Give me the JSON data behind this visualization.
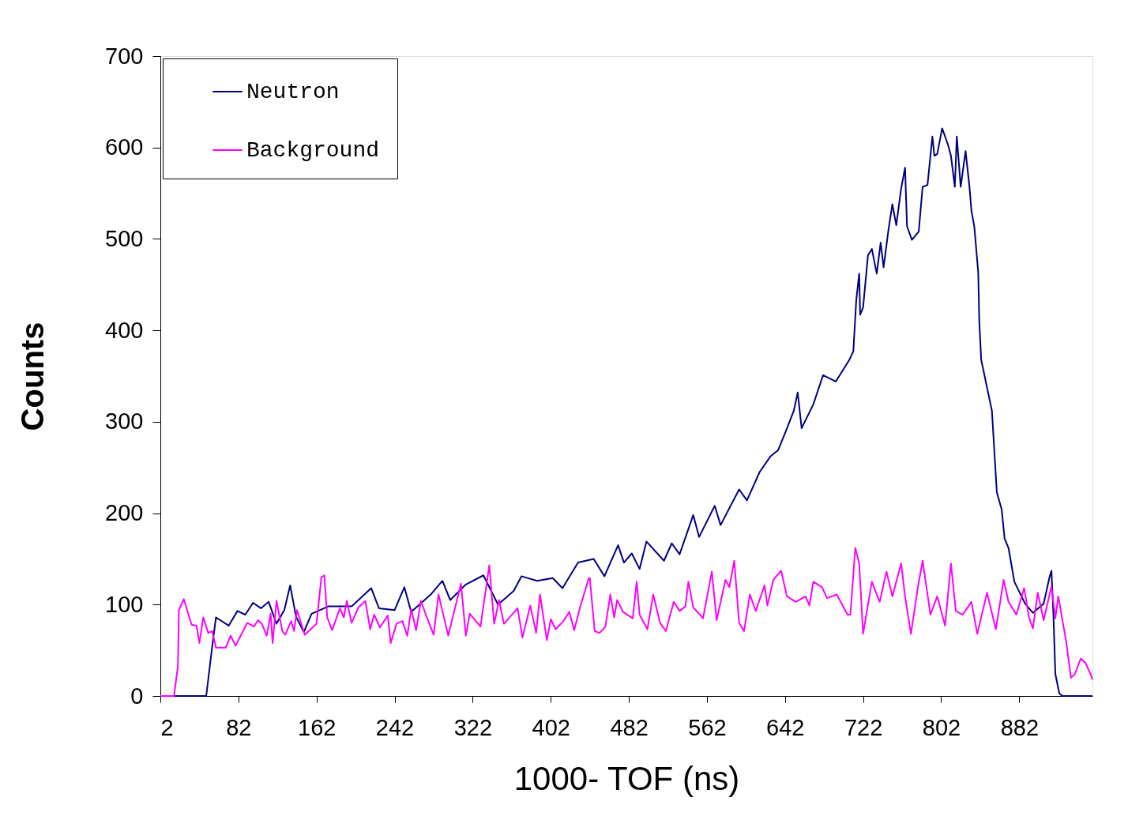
{
  "chart_data": {
    "type": "line",
    "xlabel": "1000- TOF (ns)",
    "ylabel": "Counts",
    "xlim": [
      2,
      957
    ],
    "xticks": [
      2,
      82,
      162,
      242,
      322,
      402,
      482,
      562,
      642,
      722,
      802,
      882
    ],
    "ylim": [
      0,
      700
    ],
    "yticks": [
      0,
      100,
      200,
      300,
      400,
      500,
      600,
      700
    ],
    "grid": false,
    "legend": "top left",
    "series": [
      {
        "name": "Neutron",
        "color": "#000080",
        "x": [
          2,
          49,
          55,
          59,
          72,
          81,
          89,
          97,
          105,
          113,
          121,
          129,
          135,
          141,
          149,
          157,
          174,
          198,
          218,
          226,
          242,
          252,
          259,
          279,
          291,
          299,
          315,
          333,
          348,
          364,
          372,
          388,
          404,
          414,
          430,
          446,
          457,
          471,
          477,
          485,
          493,
          500,
          518,
          526,
          534,
          548,
          554,
          570,
          576,
          595,
          603,
          616,
          627,
          635,
          643,
          651,
          655,
          659,
          671,
          681,
          694,
          708,
          712,
          715,
          718,
          719,
          722,
          727,
          731,
          736,
          740,
          743,
          748,
          752,
          756,
          761,
          765,
          767,
          772,
          779,
          783,
          788,
          791,
          793,
          795,
          798,
          803,
          809,
          812,
          816,
          818,
          822,
          827,
          831,
          833,
          836,
          840,
          841,
          843,
          854,
          859,
          864,
          867,
          871,
          877,
          888,
          896,
          907,
          913,
          915,
          917,
          919,
          923,
          926,
          957
        ],
        "values": [
          0,
          0,
          53,
          86,
          77,
          93,
          89,
          102,
          96,
          103,
          79,
          94,
          121,
          87,
          70,
          90,
          98,
          98,
          118,
          96,
          94,
          119,
          92,
          111,
          126,
          105,
          122,
          132,
          100,
          115,
          131,
          126,
          129,
          118,
          146,
          150,
          131,
          165,
          146,
          156,
          139,
          169,
          148,
          167,
          155,
          198,
          174,
          208,
          187,
          226,
          214,
          245,
          262,
          269,
          290,
          312,
          332,
          293,
          319,
          351,
          344,
          368,
          377,
          433,
          462,
          417,
          425,
          482,
          489,
          462,
          496,
          469,
          510,
          538,
          515,
          555,
          578,
          514,
          499,
          508,
          557,
          559,
          591,
          612,
          591,
          593,
          621,
          603,
          591,
          557,
          612,
          557,
          596,
          557,
          531,
          513,
          463,
          411,
          368,
          312,
          223,
          204,
          172,
          162,
          125,
          101,
          91,
          101,
          130,
          137,
          89,
          24,
          3,
          0,
          0
        ]
      },
      {
        "name": "Background",
        "color": "#ff00ff",
        "x": [
          2,
          16,
          20,
          21,
          26,
          34,
          39,
          42,
          46,
          51,
          55,
          59,
          69,
          74,
          79,
          91,
          98,
          102,
          106,
          111,
          115,
          117,
          121,
          127,
          130,
          136,
          139,
          142,
          150,
          162,
          167,
          170,
          173,
          178,
          186,
          190,
          193,
          198,
          205,
          212,
          217,
          221,
          227,
          235,
          238,
          244,
          250,
          255,
          259,
          264,
          269,
          275,
          282,
          287,
          297,
          310,
          315,
          319,
          330,
          339,
          344,
          349,
          354,
          364,
          368,
          373,
          381,
          387,
          391,
          398,
          402,
          407,
          415,
          421,
          426,
          432,
          441,
          442,
          447,
          452,
          458,
          463,
          467,
          470,
          476,
          486,
          490,
          493,
          501,
          507,
          514,
          520,
          528,
          534,
          540,
          543,
          548,
          558,
          567,
          572,
          581,
          585,
          590,
          595,
          600,
          606,
          612,
          621,
          624,
          630,
          638,
          644,
          653,
          663,
          667,
          671,
          680,
          685,
          695,
          706,
          709,
          714,
          718,
          722,
          731,
          739,
          746,
          752,
          761,
          765,
          771,
          778,
          783,
          791,
          798,
          806,
          812,
          817,
          824,
          833,
          839,
          849,
          858,
          866,
          871,
          879,
          887,
          892,
          896,
          901,
          907,
          915,
          919,
          922,
          930,
          935,
          939,
          945,
          950,
          955,
          957
        ],
        "values": [
          0,
          0,
          33,
          94,
          106,
          78,
          77,
          58,
          86,
          69,
          71,
          53,
          53,
          66,
          55,
          80,
          76,
          83,
          79,
          66,
          90,
          58,
          104,
          71,
          67,
          82,
          71,
          94,
          67,
          79,
          130,
          132,
          86,
          72,
          96,
          86,
          104,
          80,
          97,
          104,
          73,
          89,
          75,
          88,
          58,
          79,
          82,
          66,
          95,
          72,
          104,
          86,
          67,
          111,
          66,
          123,
          66,
          90,
          76,
          143,
          79,
          105,
          79,
          91,
          96,
          64,
          99,
          69,
          111,
          61,
          84,
          73,
          82,
          92,
          72,
          97,
          129,
          129,
          71,
          69,
          76,
          111,
          86,
          105,
          92,
          85,
          125,
          89,
          73,
          111,
          80,
          71,
          103,
          93,
          98,
          125,
          97,
          85,
          136,
          83,
          127,
          119,
          148,
          80,
          71,
          111,
          93,
          121,
          99,
          127,
          137,
          109,
          103,
          109,
          99,
          125,
          119,
          107,
          111,
          89,
          89,
          162,
          145,
          68,
          125,
          103,
          136,
          109,
          145,
          109,
          68,
          118,
          148,
          89,
          109,
          77,
          145,
          93,
          89,
          103,
          68,
          113,
          73,
          127,
          103,
          89,
          118,
          86,
          74,
          113,
          83,
          120,
          85,
          109,
          60,
          20,
          24,
          41,
          36,
          24,
          18
        ]
      }
    ]
  }
}
